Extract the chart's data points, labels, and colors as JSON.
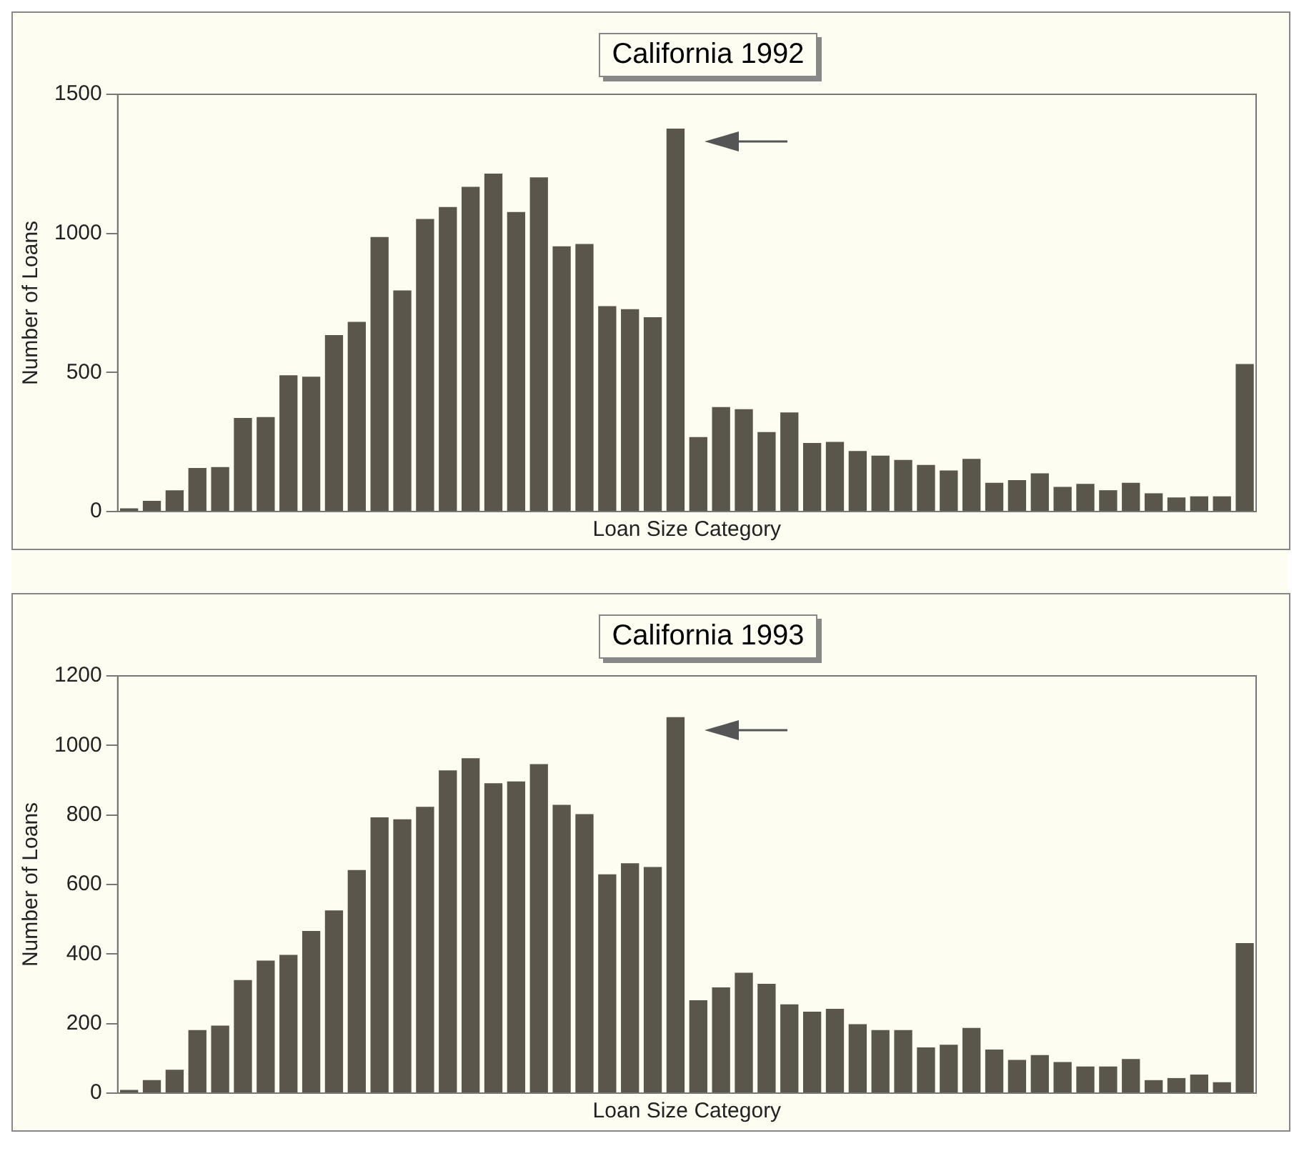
{
  "chart_data": [
    {
      "type": "bar",
      "title": "California 1992",
      "xlabel": "Loan Size Category",
      "ylabel": "Number of Loans",
      "color": "#5b564b",
      "categories": [
        null,
        null,
        null,
        null,
        null,
        null,
        null,
        null,
        null,
        null,
        null,
        null,
        null,
        null,
        null,
        null,
        null,
        null,
        null,
        null,
        null,
        null,
        null,
        null,
        null,
        null,
        null,
        null,
        null,
        null,
        null,
        null,
        null,
        null,
        null,
        null,
        null,
        null,
        null,
        null,
        null,
        null,
        null,
        null,
        null,
        null,
        null,
        null,
        null,
        null
      ],
      "values": [
        10,
        37,
        75,
        155,
        158,
        335,
        338,
        488,
        483,
        633,
        680,
        985,
        793,
        1050,
        1093,
        1166,
        1213,
        1075,
        1200,
        952,
        960,
        737,
        726,
        697,
        1375,
        266,
        374,
        366,
        284,
        355,
        245,
        249,
        216,
        199,
        184,
        166,
        146,
        188,
        102,
        111,
        136,
        87,
        98,
        75,
        102,
        64,
        49,
        53,
        53,
        529
      ],
      "ylim": [
        0,
        1500
      ],
      "yticks": [
        0,
        500,
        1000,
        1500
      ],
      "grid": false,
      "tick_labels": "y"
    },
    {
      "type": "bar",
      "title": "California 1993",
      "xlabel": "Loan Size Category",
      "ylabel": "Number of Loans",
      "color": "#5b564b",
      "categories": [
        null,
        null,
        null,
        null,
        null,
        null,
        null,
        null,
        null,
        null,
        null,
        null,
        null,
        null,
        null,
        null,
        null,
        null,
        null,
        null,
        null,
        null,
        null,
        null,
        null,
        null,
        null,
        null,
        null,
        null,
        null,
        null,
        null,
        null,
        null,
        null,
        null,
        null,
        null,
        null,
        null,
        null,
        null,
        null,
        null,
        null,
        null,
        null,
        null,
        null
      ],
      "values": [
        8,
        36,
        66,
        180,
        193,
        324,
        380,
        396,
        465,
        524,
        640,
        792,
        786,
        822,
        927,
        962,
        890,
        895,
        945,
        828,
        801,
        628,
        660,
        649,
        1080,
        266,
        303,
        345,
        313,
        254,
        233,
        241,
        197,
        180,
        180,
        130,
        138,
        186,
        124,
        94,
        108,
        88,
        75,
        75,
        97,
        36,
        42,
        52,
        30,
        430
      ],
      "ylim": [
        0,
        1200
      ],
      "yticks": [
        0,
        200,
        400,
        600,
        800,
        1000,
        1200
      ],
      "grid": false,
      "tick_labels": "y"
    }
  ]
}
